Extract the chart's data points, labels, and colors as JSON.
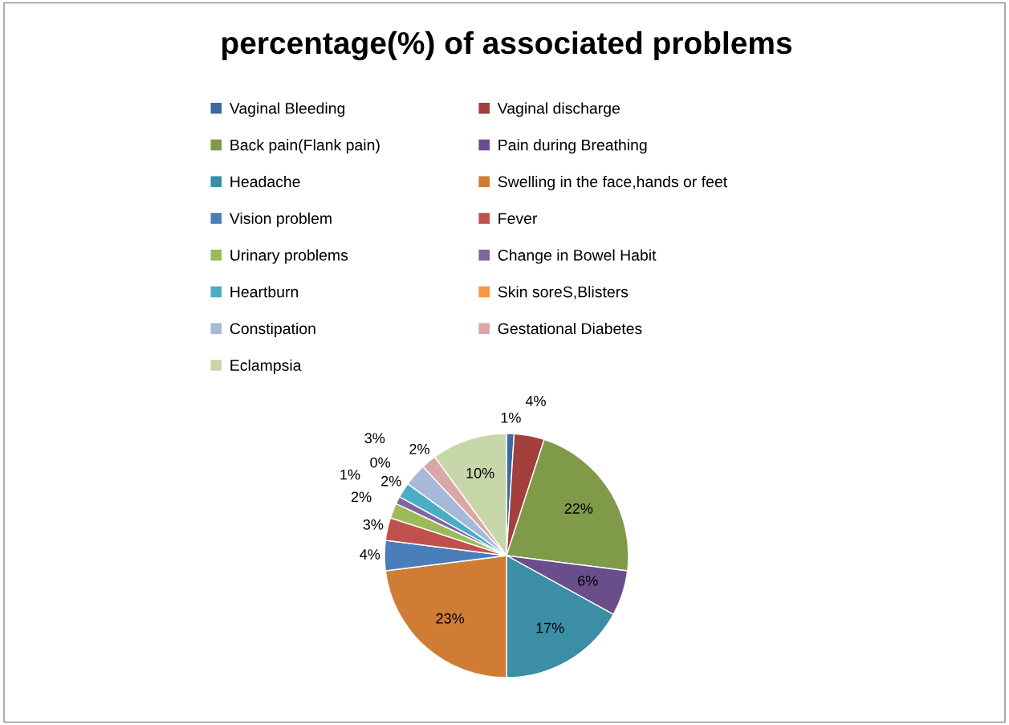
{
  "chart_data": {
    "type": "pie",
    "title": "percentage(%) of associated problems",
    "categories": [
      "Vaginal Bleeding",
      "Vaginal discharge",
      "Back pain(Flank pain)",
      "Pain during Breathing",
      "Headache",
      "Swelling in the face,hands or feet",
      "Vision problem",
      "Fever",
      "Urinary problems",
      "Change in Bowel Habit",
      "Heartburn",
      "Skin soreS,Blisters",
      "Constipation",
      "Gestational Diabetes",
      "Eclampsia"
    ],
    "values": [
      1,
      4,
      22,
      6,
      17,
      23,
      4,
      3,
      2,
      1,
      2,
      0,
      3,
      2,
      10
    ],
    "value_labels": [
      "1%",
      "4%",
      "22%",
      "6%",
      "17%",
      "23%",
      "4%",
      "3%",
      "2%",
      "1%",
      "2%",
      "0%",
      "3%",
      "2%",
      "10%"
    ],
    "colors": [
      "#3c6aa1",
      "#a33f3c",
      "#7f9a48",
      "#6a4e8b",
      "#3b8ea5",
      "#d07c35",
      "#4a7ebb",
      "#c0504d",
      "#9bbb59",
      "#8064a2",
      "#4bacc6",
      "#f79646",
      "#a7b9d9",
      "#dba6a6",
      "#c8d7aa"
    ],
    "legend": "top"
  }
}
